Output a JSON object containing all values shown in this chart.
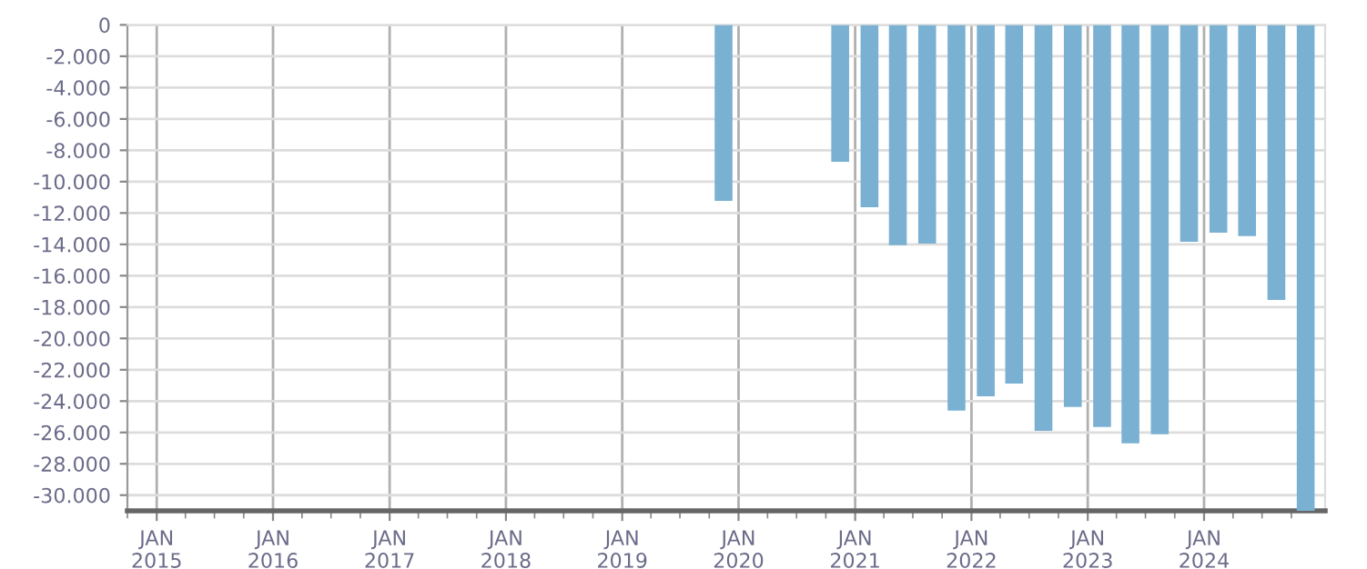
{
  "chart_data": {
    "type": "bar",
    "color": "#7ab1d3",
    "x": [
      "2019-11-15",
      "2020-11-15",
      "2021-02-15",
      "2021-05-15",
      "2021-08-15",
      "2021-11-15",
      "2022-02-15",
      "2022-05-15",
      "2022-08-15",
      "2022-11-15",
      "2023-02-15",
      "2023-05-15",
      "2023-08-15",
      "2023-11-15",
      "2024-02-15",
      "2024-05-15",
      "2024-08-15",
      "2024-11-15"
    ],
    "values": [
      -11230,
      -8730,
      -11630,
      -14060,
      -13950,
      -24610,
      -23700,
      -22880,
      -25890,
      -24380,
      -25650,
      -26690,
      -26120,
      -13830,
      -13250,
      -13480,
      -17540,
      -31000
    ],
    "xlim": [
      "2014-10-01",
      "2025-01-15"
    ],
    "xticks": [
      {
        "value": "2015-01-01",
        "label": "JAN\n2015"
      },
      {
        "value": "2016-01-01",
        "label": "JAN\n2016"
      },
      {
        "value": "2017-01-01",
        "label": "JAN\n2017"
      },
      {
        "value": "2018-01-01",
        "label": "JAN\n2018"
      },
      {
        "value": "2019-01-01",
        "label": "JAN\n2019"
      },
      {
        "value": "2020-01-01",
        "label": "JAN\n2020"
      },
      {
        "value": "2021-01-01",
        "label": "JAN\n2021"
      },
      {
        "value": "2022-01-01",
        "label": "JAN\n2022"
      },
      {
        "value": "2023-01-01",
        "label": "JAN\n2023"
      },
      {
        "value": "2024-01-01",
        "label": "JAN\n2024"
      }
    ],
    "ylim": [
      -31000,
      0
    ],
    "yticks": [
      0,
      {
        "value": -2000,
        "label": "-2.000"
      },
      {
        "value": -4000,
        "label": "-4.000"
      },
      {
        "value": -6000,
        "label": "-6.000"
      },
      {
        "value": -8000,
        "label": "-8.000"
      },
      {
        "value": -10000,
        "label": "-10.000"
      },
      {
        "value": -12000,
        "label": "-12.000"
      },
      {
        "value": -14000,
        "label": "-14.000"
      },
      {
        "value": -16000,
        "label": "-16.000"
      },
      {
        "value": -18000,
        "label": "-18.000"
      },
      {
        "value": -20000,
        "label": "-20.000"
      },
      {
        "value": -22000,
        "label": "-22.000"
      },
      {
        "value": -24000,
        "label": "-24.000"
      },
      {
        "value": -26000,
        "label": "-26.000"
      },
      {
        "value": -28000,
        "label": "-28.000"
      },
      {
        "value": -30000,
        "label": "-30.000"
      }
    ],
    "grid": true
  }
}
